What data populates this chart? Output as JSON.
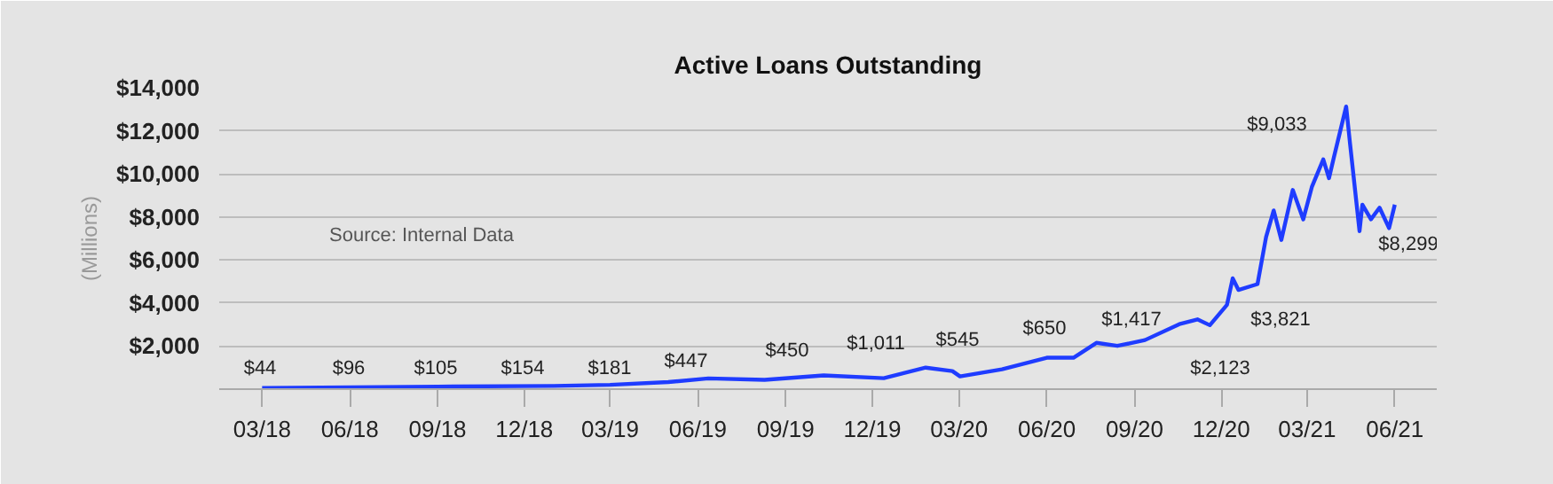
{
  "chart_data": {
    "type": "line",
    "title": "Active Loans Outstanding",
    "ylabel": "(Millions)",
    "x": [
      "2018-03-01",
      "2018-09-01",
      "2019-01-01",
      "2019-03-01",
      "2019-05-01",
      "2019-06-12",
      "2019-08-10",
      "2019-10-11",
      "2019-12-13",
      "2020-01-26",
      "2020-02-23",
      "2020-03-02",
      "2020-04-15",
      "2020-06-01",
      "2020-06-29",
      "2020-07-23",
      "2020-08-14",
      "2020-09-12",
      "2020-10-18",
      "2020-11-06",
      "2020-11-19",
      "2020-12-07",
      "2020-12-13",
      "2020-12-19",
      "2021-01-08",
      "2021-01-17",
      "2021-01-25",
      "2021-02-02",
      "2021-02-14",
      "2021-02-25",
      "2021-03-06",
      "2021-03-18",
      "2021-03-24",
      "2021-03-29",
      "2021-04-11",
      "2021-04-15",
      "2021-04-25",
      "2021-04-28",
      "2021-05-07",
      "2021-05-16",
      "2021-05-26",
      "2021-06-01"
    ],
    "series": [
      {
        "color": "#1f3cff",
        "values": [
          50,
          120,
          150,
          200,
          330,
          500,
          430,
          640,
          510,
          1000,
          840,
          590,
          920,
          1460,
          1460,
          2150,
          2010,
          2280,
          3020,
          3240,
          2970,
          3920,
          5150,
          4610,
          4880,
          7070,
          8300,
          6930,
          9250,
          7890,
          9390,
          10670,
          9800,
          10750,
          13130,
          11430,
          7340,
          8570,
          7890,
          8430,
          7480,
          8570
        ]
      }
    ],
    "ylim": [
      0,
      14000
    ],
    "yticks": [
      {
        "value": 2000,
        "label": "$2,000"
      },
      {
        "value": 4000,
        "label": "$4,000"
      },
      {
        "value": 6000,
        "label": "$6,000"
      },
      {
        "value": 8000,
        "label": "$8,000"
      },
      {
        "value": 10000,
        "label": "$10,000"
      },
      {
        "value": 12000,
        "label": "$12,000"
      },
      {
        "value": 14000,
        "label": "$14,000"
      }
    ],
    "xlim": [
      "2018-01-15",
      "2021-07-15"
    ],
    "xticks": [
      {
        "value": "2018-03-01",
        "label": "03/18"
      },
      {
        "value": "2018-06-01",
        "label": "06/18"
      },
      {
        "value": "2018-09-01",
        "label": "09/18"
      },
      {
        "value": "2018-12-01",
        "label": "12/18"
      },
      {
        "value": "2019-03-01",
        "label": "03/19"
      },
      {
        "value": "2019-06-01",
        "label": "06/19"
      },
      {
        "value": "2019-09-01",
        "label": "09/19"
      },
      {
        "value": "2019-12-01",
        "label": "12/19"
      },
      {
        "value": "2020-03-01",
        "label": "03/20"
      },
      {
        "value": "2020-06-01",
        "label": "06/20"
      },
      {
        "value": "2020-09-01",
        "label": "09/20"
      },
      {
        "value": "2020-12-01",
        "label": "12/20"
      },
      {
        "value": "2021-03-01",
        "label": "03/21"
      },
      {
        "value": "2021-06-01",
        "label": "06/21"
      }
    ],
    "grid": "y",
    "annotations": [
      "$44",
      "$96",
      "$105",
      "$154",
      "$181",
      "$447",
      "$450",
      "$1,011",
      "$545",
      "$650",
      "$1,417",
      "$2,123",
      "$3,821",
      "$9,033",
      "$8,299",
      "Source: Internal Data"
    ]
  }
}
